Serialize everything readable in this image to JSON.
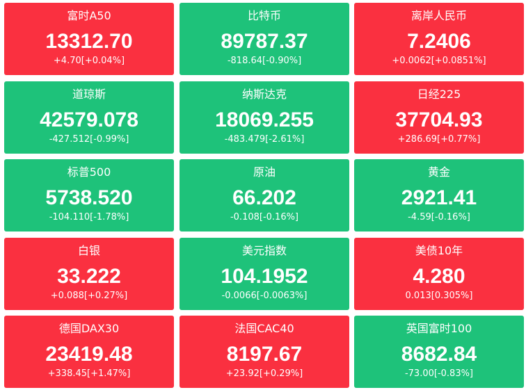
{
  "tiles": [
    {
      "name": "富时A50",
      "price": "13312.70",
      "change": "+4.70[+0.04%]",
      "color": "#fa3040"
    },
    {
      "name": "比特币",
      "price": "89787.37",
      "change": "-818.64[-0.90%]",
      "color": "#1ec27a"
    },
    {
      "name": "离岸人民币",
      "price": "7.2406",
      "change": "+0.0062[+0.0851%]",
      "color": "#fa3040"
    },
    {
      "name": "道琼斯",
      "price": "42579.078",
      "change": "-427.512[-0.99%]",
      "color": "#1ec27a"
    },
    {
      "name": "纳斯达克",
      "price": "18069.255",
      "change": "-483.479[-2.61%]",
      "color": "#1ec27a"
    },
    {
      "name": "日经225",
      "price": "37704.93",
      "change": "+286.69[+0.77%]",
      "color": "#fa3040"
    },
    {
      "name": "标普500",
      "price": "5738.520",
      "change": "-104.110[-1.78%]",
      "color": "#1ec27a"
    },
    {
      "name": "原油",
      "price": "66.202",
      "change": "-0.108[-0.16%]",
      "color": "#1ec27a"
    },
    {
      "name": "黄金",
      "price": "2921.41",
      "change": "-4.59[-0.16%]",
      "color": "#1ec27a"
    },
    {
      "name": "白银",
      "price": "33.222",
      "change": "+0.088[+0.27%]",
      "color": "#fa3040"
    },
    {
      "name": "美元指数",
      "price": "104.1952",
      "change": "-0.0066[-0.0063%]",
      "color": "#1ec27a"
    },
    {
      "name": "美债10年",
      "price": "4.280",
      "change": "0.013[0.305%]",
      "color": "#fa3040"
    },
    {
      "name": "德国DAX30",
      "price": "23419.48",
      "change": "+338.45[+1.47%]",
      "color": "#fa3040"
    },
    {
      "name": "法国CAC40",
      "price": "8197.67",
      "change": "+23.92[+0.29%]",
      "color": "#fa3040"
    },
    {
      "name": "英国富时100",
      "price": "8682.84",
      "change": "-73.00[-0.83%]",
      "color": "#1ec27a"
    }
  ]
}
